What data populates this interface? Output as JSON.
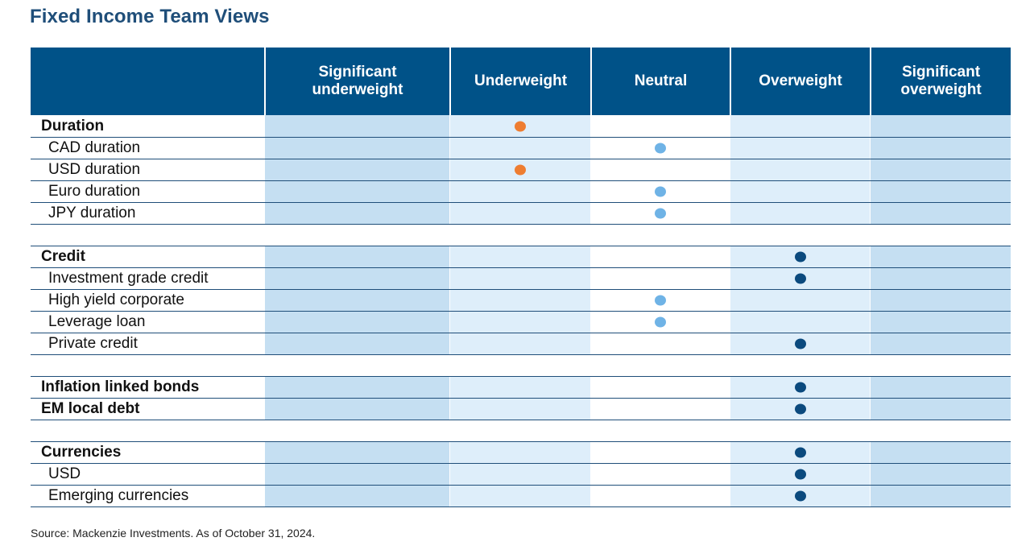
{
  "title": "Fixed Income Team Views",
  "source": "Source: Mackenzie Investments. As of October 31, 2024.",
  "chart_data": {
    "type": "table",
    "columns": [
      "Significant underweight",
      "Underweight",
      "Neutral",
      "Overweight",
      "Significant overweight"
    ],
    "colors": {
      "underweight": "#ee7d31",
      "neutral": "#6fb3e6",
      "overweight": "#0b4a7e",
      "header_bg": "#005288",
      "title": "#1f4e79"
    },
    "rows": [
      {
        "label": "Duration",
        "group": true,
        "view": "Underweight",
        "color": "underweight"
      },
      {
        "label": "CAD duration",
        "group": false,
        "view": "Neutral",
        "color": "neutral"
      },
      {
        "label": "USD duration",
        "group": false,
        "view": "Underweight",
        "color": "underweight"
      },
      {
        "label": "Euro duration",
        "group": false,
        "view": "Neutral",
        "color": "neutral"
      },
      {
        "label": "JPY duration",
        "group": false,
        "view": "Neutral",
        "color": "neutral"
      },
      {
        "spacer": true
      },
      {
        "label": "Credit",
        "group": true,
        "view": "Overweight",
        "color": "overweight"
      },
      {
        "label": "Investment grade credit",
        "group": false,
        "view": "Overweight",
        "color": "overweight"
      },
      {
        "label": "High yield corporate",
        "group": false,
        "view": "Neutral",
        "color": "neutral"
      },
      {
        "label": "Leverage loan",
        "group": false,
        "view": "Neutral",
        "color": "neutral"
      },
      {
        "label": "Private credit",
        "group": false,
        "view": "Overweight",
        "color": "overweight"
      },
      {
        "spacer": true
      },
      {
        "label": "Inflation linked bonds",
        "group": true,
        "view": "Overweight",
        "color": "overweight"
      },
      {
        "label": "EM local debt",
        "group": true,
        "view": "Overweight",
        "color": "overweight"
      },
      {
        "spacer": true
      },
      {
        "label": "Currencies",
        "group": true,
        "view": "Overweight",
        "color": "overweight"
      },
      {
        "label": "USD",
        "group": false,
        "view": "Overweight",
        "color": "overweight"
      },
      {
        "label": "Emerging currencies",
        "group": false,
        "view": "Overweight",
        "color": "overweight"
      }
    ]
  }
}
